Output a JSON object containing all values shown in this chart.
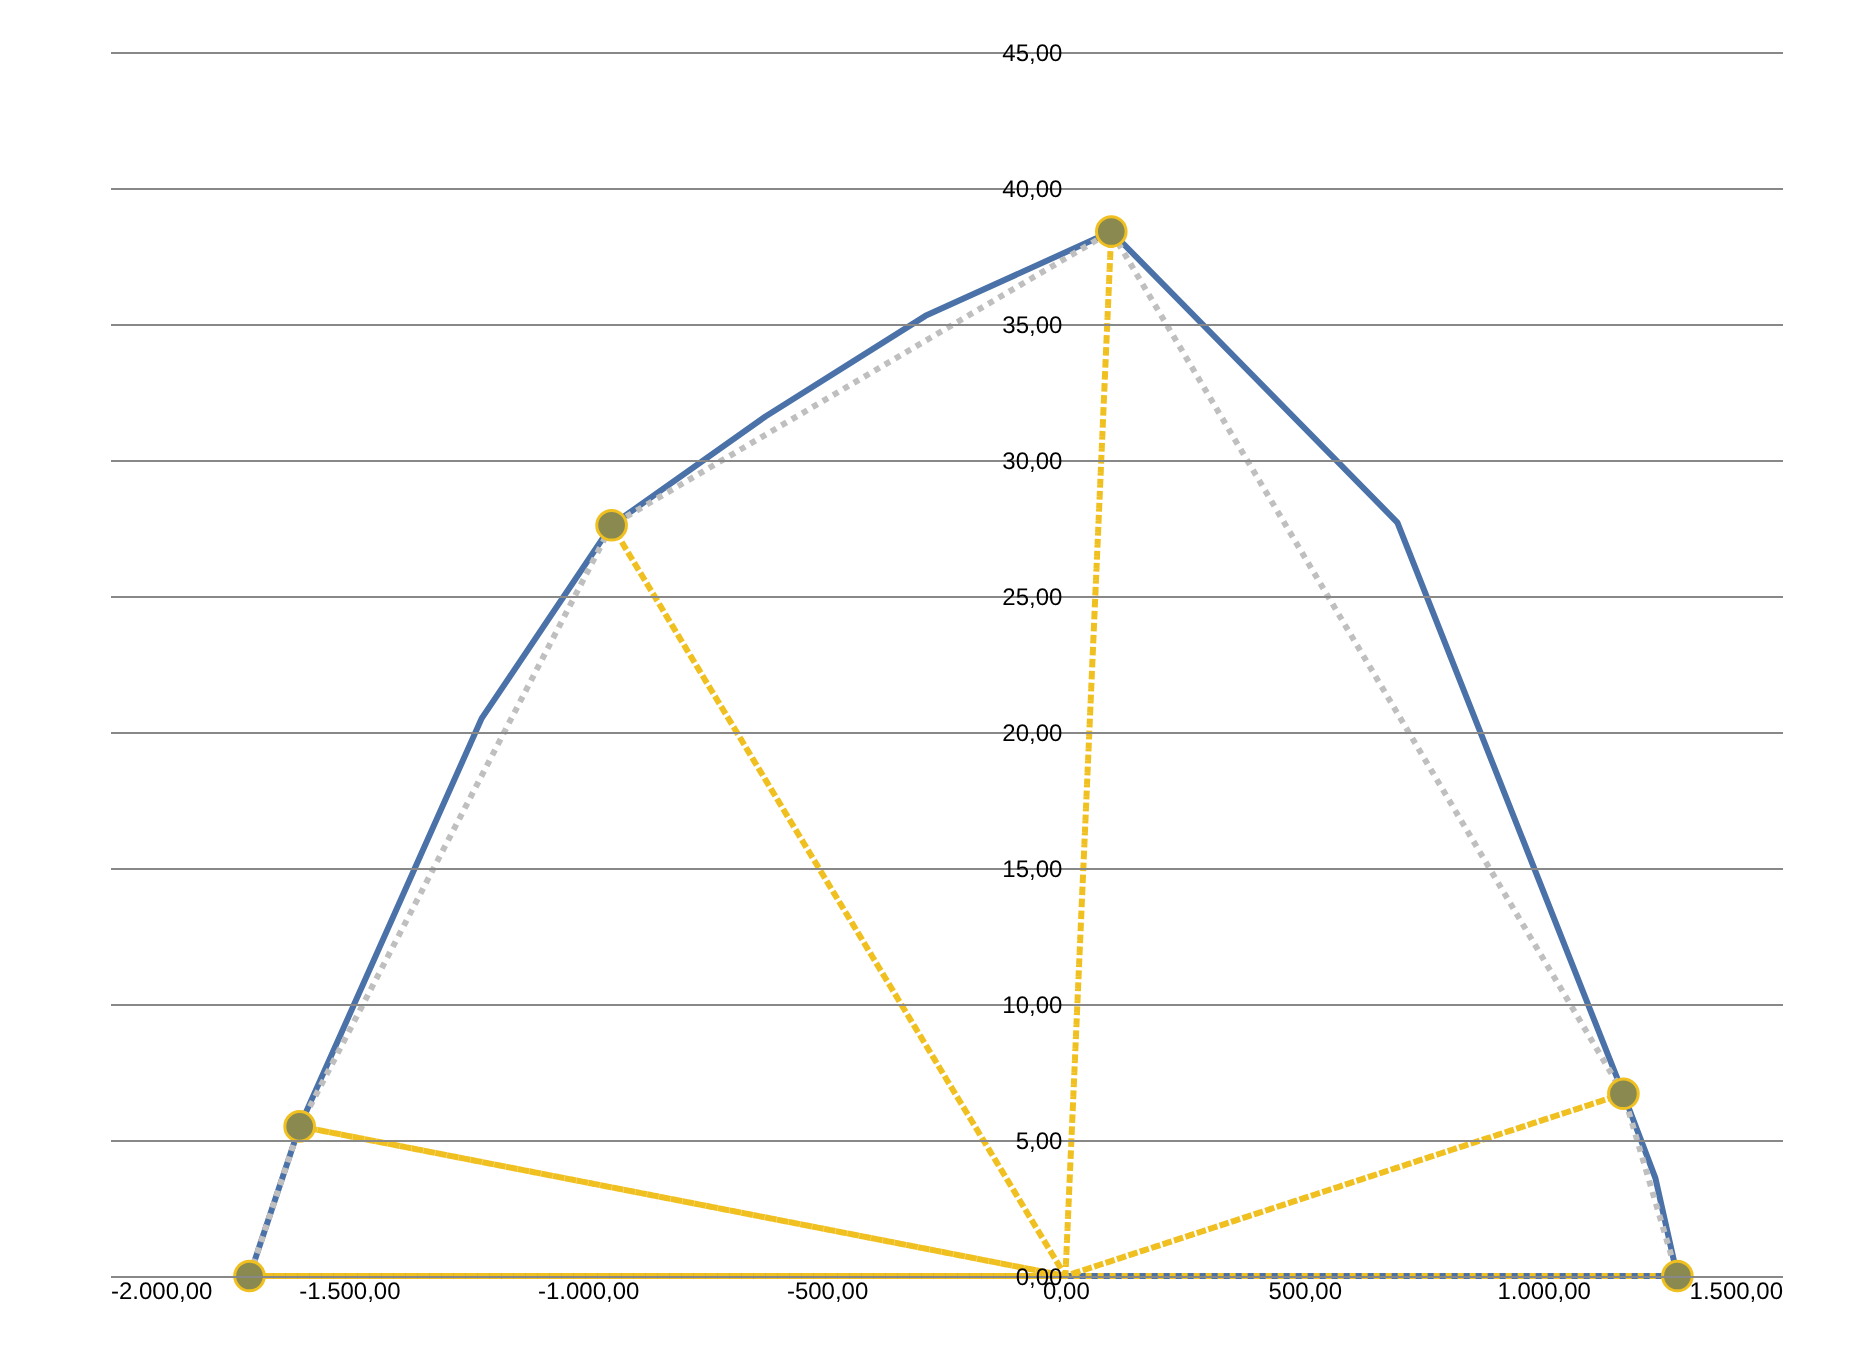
{
  "chart_data": {
    "type": "line",
    "xlim": [
      -2000,
      1500
    ],
    "ylim": [
      0,
      45
    ],
    "xticks": [
      {
        "value": -2000,
        "label": "-2.000,00"
      },
      {
        "value": -1500,
        "label": "-1.500,00"
      },
      {
        "value": -1000,
        "label": "-1.000,00"
      },
      {
        "value": -500,
        "label": "-500,00"
      },
      {
        "value": 0,
        "label": "0,00"
      },
      {
        "value": 500,
        "label": "500,00"
      },
      {
        "value": 1000,
        "label": "1.000,00"
      },
      {
        "value": 1500,
        "label": "1.500,00"
      }
    ],
    "yticks": [
      {
        "value": 0,
        "label": "0,00"
      },
      {
        "value": 5,
        "label": "5,00"
      },
      {
        "value": 10,
        "label": "10,00"
      },
      {
        "value": 15,
        "label": "15,00"
      },
      {
        "value": 20,
        "label": "20,00"
      },
      {
        "value": 25,
        "label": "25,00"
      },
      {
        "value": 30,
        "label": "30,00"
      },
      {
        "value": 35,
        "label": "35,00"
      },
      {
        "value": 40,
        "label": "40,00"
      },
      {
        "value": 45,
        "label": "45,00"
      }
    ],
    "grid": "y",
    "series": [
      {
        "type": "line",
        "color": "#4a72a8",
        "line_style": "solid",
        "marker": "none",
        "x": [
          -1708,
          -1603,
          -1222,
          -950,
          -628,
          -293,
          96,
          695,
          1168,
          1235,
          1281
        ],
        "values": [
          0,
          5.5,
          20.5,
          27.6,
          31.6,
          35.3,
          38.4,
          27.7,
          6.7,
          3.6,
          0
        ]
      },
      {
        "type": "line",
        "color": "#4a72a8",
        "line_style": "solid",
        "marker": "none",
        "x": [
          -1708,
          1281
        ],
        "values": [
          0,
          0
        ]
      },
      {
        "type": "line",
        "color": "#bfbfbf",
        "line_style": "dotted",
        "marker": "none",
        "x": [
          -1708,
          -1603,
          -950,
          96,
          1168,
          1281
        ],
        "values": [
          0,
          5.5,
          27.6,
          38.4,
          6.7,
          0
        ]
      },
      {
        "type": "line",
        "color": "#f0c020",
        "line_style": "dotted",
        "marker": "none",
        "x": [
          0,
          -1708,
          0,
          -1603,
          0,
          -950,
          0,
          96,
          0,
          1168,
          0,
          1281
        ],
        "values": [
          0,
          0,
          0,
          5.5,
          0,
          27.6,
          0,
          38.4,
          0,
          6.7,
          0,
          0
        ]
      },
      {
        "type": "scatter",
        "color": "#8a8a50",
        "marker": "circle",
        "x": [
          -1708,
          -1603,
          -950,
          96,
          1168,
          1281
        ],
        "values": [
          0,
          5.5,
          27.6,
          38.4,
          6.7,
          0
        ]
      }
    ]
  }
}
